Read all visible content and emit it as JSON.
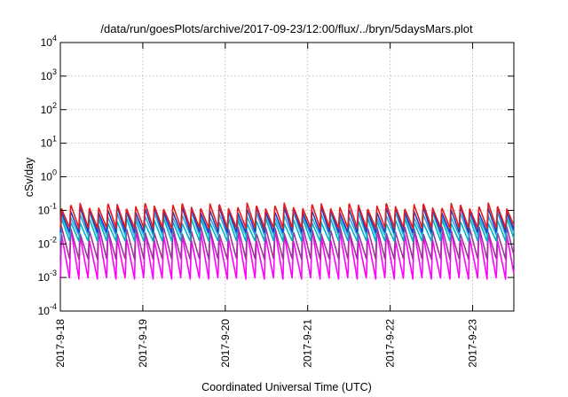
{
  "chart_data": {
    "type": "line",
    "title": "/data/run/goesPlots/archive/2017-09-23/12:00/flux/../bryn/5daysMars.plot",
    "xlabel": "Coordinated Universal Time (UTC)",
    "ylabel": "cSv/day",
    "yscale": "log",
    "ylim": [
      0.0001,
      10000
    ],
    "xlim": [
      "2017-09-18 00:00",
      "2017-09-23 12:00"
    ],
    "grid": true,
    "y_ticks": [
      {
        "base": "10",
        "exp": "-4"
      },
      {
        "base": "10",
        "exp": "-3"
      },
      {
        "base": "10",
        "exp": "-2"
      },
      {
        "base": "10",
        "exp": "-1"
      },
      {
        "base": "10",
        "exp": "0"
      },
      {
        "base": "10",
        "exp": "1"
      },
      {
        "base": "10",
        "exp": "2"
      },
      {
        "base": "10",
        "exp": "3"
      },
      {
        "base": "10",
        "exp": "4"
      }
    ],
    "x_ticks": [
      "2017-9-18",
      "2017-9-19",
      "2017-9-20",
      "2017-9-21",
      "2017-9-22",
      "2017-9-23"
    ],
    "pattern": {
      "cycle_hours": 2.7,
      "description": "sawtooth: sharp rise then gradual decay each cycle"
    },
    "series": [
      {
        "color": "#e41a1c",
        "peak": 0.17,
        "trough": 0.03
      },
      {
        "color": "#1f3fbf",
        "peak": 0.13,
        "trough": 0.022
      },
      {
        "color": "#2ea7e0",
        "peak": 0.09,
        "trough": 0.018
      },
      {
        "color": "#00b3c2",
        "peak": 0.06,
        "trough": 0.012
      },
      {
        "color": "#a0349a",
        "peak": 0.035,
        "trough": 0.0035
      },
      {
        "color": "#ff00ff",
        "peak": 0.03,
        "trough": 0.0009
      }
    ]
  }
}
